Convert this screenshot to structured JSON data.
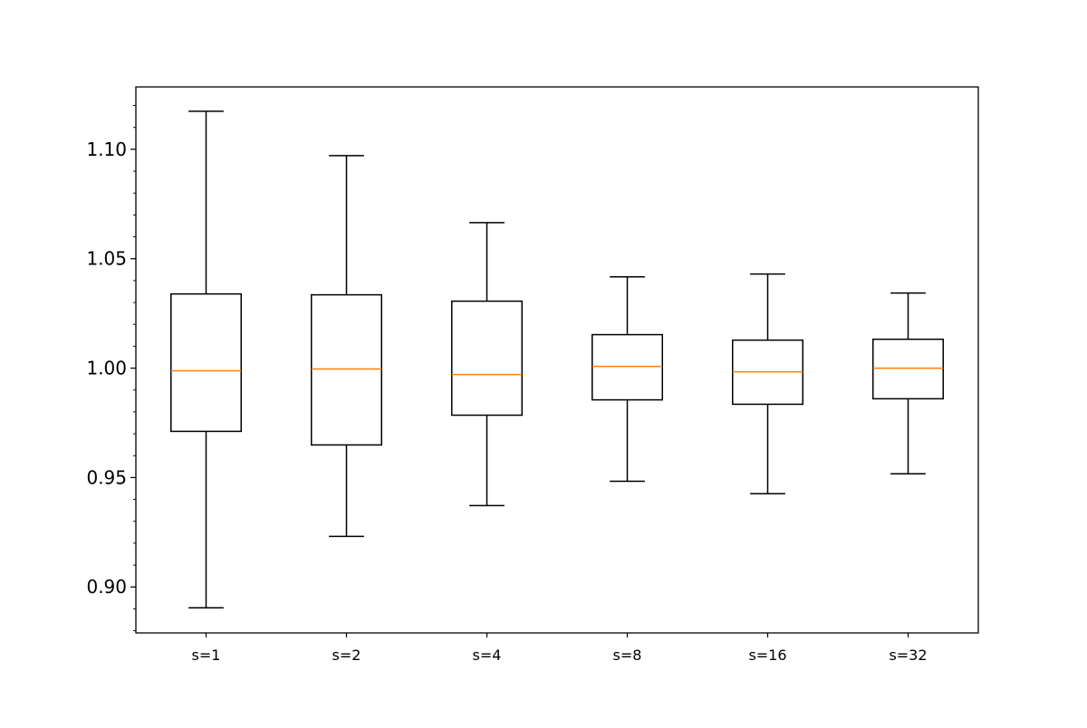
{
  "chart_data": {
    "type": "boxplot",
    "title": "",
    "xlabel": "",
    "ylabel": "",
    "categories": [
      "s=1",
      "s=2",
      "s=4",
      "s=8",
      "s=16",
      "s=32"
    ],
    "ylim": [
      0.879,
      1.1285
    ],
    "yticks": [
      0.9,
      0.95,
      1.0,
      1.05,
      1.1
    ],
    "ytick_labels": [
      "0.90",
      "0.95",
      "1.00",
      "1.05",
      "1.10"
    ],
    "minor_ytick_step": 0.01,
    "grid": false,
    "boxes": [
      {
        "label": "s=1",
        "whislo": 0.8905,
        "q1": 0.9711,
        "med": 0.9988,
        "q3": 1.0339,
        "whishi": 1.1174
      },
      {
        "label": "s=2",
        "whislo": 0.9231,
        "q1": 0.9649,
        "med": 0.9996,
        "q3": 1.0335,
        "whishi": 1.0971
      },
      {
        "label": "s=4",
        "whislo": 0.9372,
        "q1": 0.9785,
        "med": 0.9971,
        "q3": 1.0306,
        "whishi": 1.0665
      },
      {
        "label": "s=8",
        "whislo": 0.9483,
        "q1": 0.9855,
        "med": 1.0008,
        "q3": 1.0153,
        "whishi": 1.0417
      },
      {
        "label": "s=16",
        "whislo": 0.9426,
        "q1": 0.9835,
        "med": 0.9983,
        "q3": 1.0128,
        "whishi": 1.043
      },
      {
        "label": "s=32",
        "whislo": 0.9517,
        "q1": 0.986,
        "med": 1.0,
        "q3": 1.0132,
        "whishi": 1.0343
      }
    ],
    "colors": {
      "box": "#000000",
      "median": "#ff7f0e"
    }
  }
}
